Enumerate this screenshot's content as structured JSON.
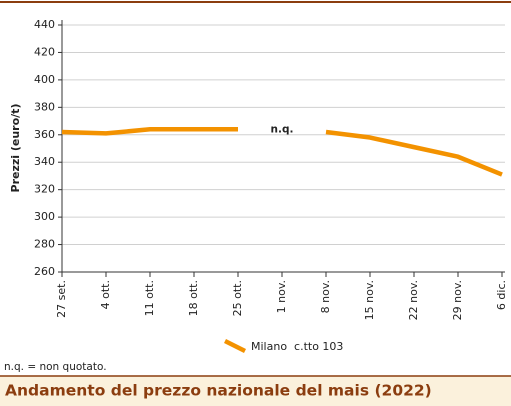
{
  "chart_data": {
    "type": "line",
    "title": "Andamento del prezzo nazionale del mais (2022)",
    "y_label": "Prezzi (euro/t)",
    "note": "n.q. = non quotato.",
    "annotations": [
      "n.q."
    ],
    "categories": [
      "27 set.",
      "4 ott.",
      "11 ott.",
      "18 ott.",
      "25 ott.",
      "1 nov.",
      "8 nov.",
      "15 nov.",
      "22 nov.",
      "29 nov.",
      "6 dic."
    ],
    "series": [
      {
        "name": "Milano  c.tto 103",
        "color": "#f39200",
        "values": [
          362,
          361,
          364,
          364,
          364,
          null,
          362,
          358,
          351,
          344,
          331
        ]
      }
    ],
    "ylim": [
      260,
      440
    ],
    "yticks": [
      260,
      280,
      300,
      320,
      340,
      360,
      380,
      400,
      420,
      440
    ],
    "grid": true
  }
}
